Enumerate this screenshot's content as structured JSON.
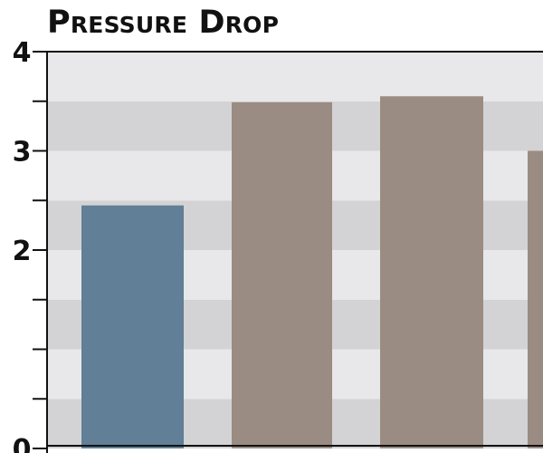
{
  "chart_data": {
    "type": "bar",
    "title": "Pressure Drop",
    "xlabel": "",
    "ylabel": "",
    "ylim": [
      0,
      4
    ],
    "y_ticks": [
      0,
      0.5,
      1,
      1.5,
      2,
      2.5,
      3,
      3.5,
      4
    ],
    "y_tick_labels": [
      "0",
      "2",
      "3",
      "4"
    ],
    "y_tick_label_values": [
      0,
      2,
      3,
      4
    ],
    "grid": "alternating horizontal bands",
    "legend": "none",
    "bars": [
      {
        "value": 2.45,
        "color": "#617f96"
      },
      {
        "value": 3.49,
        "color": "#9a8c82"
      },
      {
        "value": 3.55,
        "color": "#9a8c82"
      },
      {
        "value": 3.0,
        "color": "#9a8c82"
      }
    ],
    "colors": {
      "band_light": "#e8e8ea",
      "band_dark": "#d3d3d5",
      "axis": "#111111"
    }
  }
}
